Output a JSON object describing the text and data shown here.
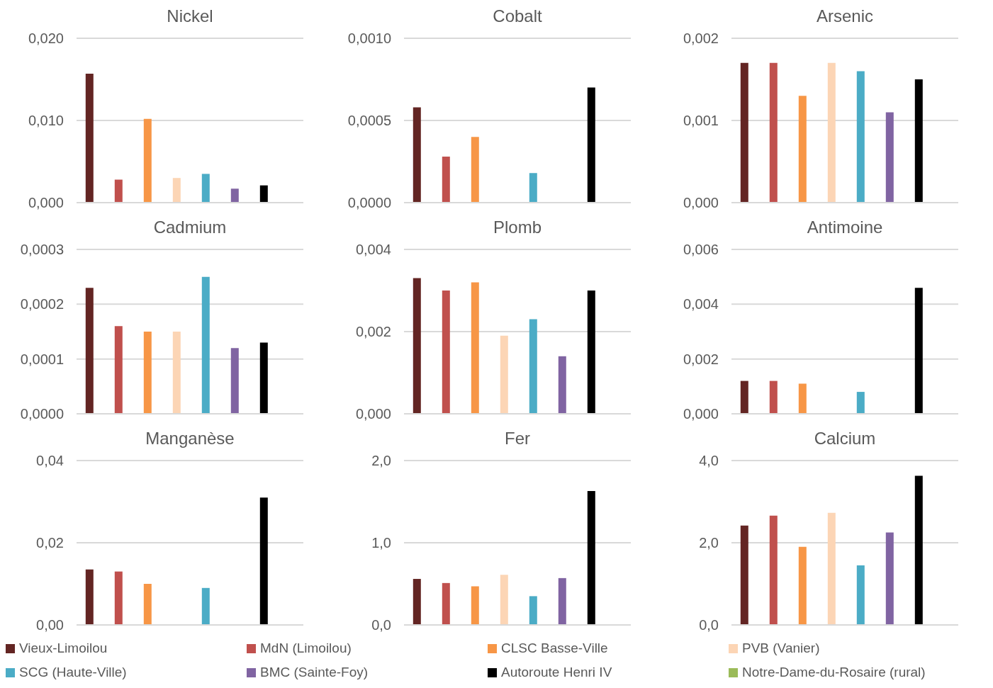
{
  "chart_data": [
    {
      "type": "bar",
      "title": "Nickel",
      "categories": [
        null
      ],
      "grid": "y",
      "legend": "bottom",
      "ylim": [
        0,
        0.02
      ],
      "yticks": [
        {
          "value": 0,
          "label": "0,000"
        },
        {
          "value": 0.01,
          "label": "0,010"
        },
        {
          "value": 0.02,
          "label": "0,020"
        }
      ],
      "series": [
        {
          "name": "Vieux-Limoilou",
          "color": "#632523",
          "values": [
            0.0157
          ]
        },
        {
          "name": "MdN (Limoilou)",
          "color": "#c0504d",
          "values": [
            0.0028
          ]
        },
        {
          "name": "CLSC Basse-Ville",
          "color": "#f79646",
          "values": [
            0.0102
          ]
        },
        {
          "name": "PVB (Vanier)",
          "color": "#fcd5b5",
          "values": [
            0.003
          ]
        },
        {
          "name": "SCG (Haute-Ville)",
          "color": "#4bacc6",
          "values": [
            0.0035
          ]
        },
        {
          "name": "BMC (Sainte-Foy)",
          "color": "#8064a2",
          "values": [
            0.0017
          ]
        },
        {
          "name": "Autoroute Henri IV",
          "color": "#000000",
          "values": [
            0.0021
          ]
        },
        {
          "name": "Notre-Dame-du-Rosaire (rural)",
          "color": "#9bbb59",
          "values": [
            null
          ]
        }
      ]
    },
    {
      "type": "bar",
      "title": "Cobalt",
      "categories": [
        null
      ],
      "grid": "y",
      "ylim": [
        0,
        0.001
      ],
      "yticks": [
        {
          "value": 0,
          "label": "0,0000"
        },
        {
          "value": 0.0005,
          "label": "0,0005"
        },
        {
          "value": 0.001,
          "label": "0,0010"
        }
      ],
      "series": [
        {
          "color": "#632523",
          "values": [
            0.00058
          ]
        },
        {
          "color": "#c0504d",
          "values": [
            0.00028
          ]
        },
        {
          "color": "#f79646",
          "values": [
            0.0004
          ]
        },
        {
          "color": "#fcd5b5",
          "values": [
            null
          ]
        },
        {
          "color": "#4bacc6",
          "values": [
            0.00018
          ]
        },
        {
          "color": "#8064a2",
          "values": [
            null
          ]
        },
        {
          "color": "#000000",
          "values": [
            0.0007
          ]
        },
        {
          "color": "#9bbb59",
          "values": [
            null
          ]
        }
      ]
    },
    {
      "type": "bar",
      "title": "Arsenic",
      "categories": [
        null
      ],
      "grid": "y",
      "ylim": [
        0,
        0.002
      ],
      "yticks": [
        {
          "value": 0,
          "label": "0,000"
        },
        {
          "value": 0.001,
          "label": "0,001"
        },
        {
          "value": 0.002,
          "label": "0,002"
        }
      ],
      "series": [
        {
          "color": "#632523",
          "values": [
            0.0017
          ]
        },
        {
          "color": "#c0504d",
          "values": [
            0.0017
          ]
        },
        {
          "color": "#f79646",
          "values": [
            0.0013
          ]
        },
        {
          "color": "#fcd5b5",
          "values": [
            0.0017
          ]
        },
        {
          "color": "#4bacc6",
          "values": [
            0.0016
          ]
        },
        {
          "color": "#8064a2",
          "values": [
            0.0011
          ]
        },
        {
          "color": "#000000",
          "values": [
            0.0015
          ]
        },
        {
          "color": "#9bbb59",
          "values": [
            null
          ]
        }
      ]
    },
    {
      "type": "bar",
      "title": "Cadmium",
      "categories": [
        null
      ],
      "grid": "y",
      "ylim": [
        0,
        0.0003
      ],
      "yticks": [
        {
          "value": 0,
          "label": "0,0000"
        },
        {
          "value": 0.0001,
          "label": "0,0001"
        },
        {
          "value": 0.0002,
          "label": "0,0002"
        },
        {
          "value": 0.0003,
          "label": "0,0003"
        }
      ],
      "series": [
        {
          "color": "#632523",
          "values": [
            0.00023
          ]
        },
        {
          "color": "#c0504d",
          "values": [
            0.00016
          ]
        },
        {
          "color": "#f79646",
          "values": [
            0.00015
          ]
        },
        {
          "color": "#fcd5b5",
          "values": [
            0.00015
          ]
        },
        {
          "color": "#4bacc6",
          "values": [
            0.00025
          ]
        },
        {
          "color": "#8064a2",
          "values": [
            0.00012
          ]
        },
        {
          "color": "#000000",
          "values": [
            0.00013
          ]
        },
        {
          "color": "#9bbb59",
          "values": [
            null
          ]
        }
      ]
    },
    {
      "type": "bar",
      "title": "Plomb",
      "categories": [
        null
      ],
      "grid": "y",
      "ylim": [
        0,
        0.004
      ],
      "yticks": [
        {
          "value": 0,
          "label": "0,000"
        },
        {
          "value": 0.002,
          "label": "0,002"
        },
        {
          "value": 0.004,
          "label": "0,004"
        }
      ],
      "series": [
        {
          "color": "#632523",
          "values": [
            0.0033
          ]
        },
        {
          "color": "#c0504d",
          "values": [
            0.003
          ]
        },
        {
          "color": "#f79646",
          "values": [
            0.0032
          ]
        },
        {
          "color": "#fcd5b5",
          "values": [
            0.0019
          ]
        },
        {
          "color": "#4bacc6",
          "values": [
            0.0023
          ]
        },
        {
          "color": "#8064a2",
          "values": [
            0.0014
          ]
        },
        {
          "color": "#000000",
          "values": [
            0.003
          ]
        },
        {
          "color": "#9bbb59",
          "values": [
            null
          ]
        }
      ]
    },
    {
      "type": "bar",
      "title": "Antimoine",
      "categories": [
        null
      ],
      "grid": "y",
      "ylim": [
        0,
        0.006
      ],
      "yticks": [
        {
          "value": 0,
          "label": "0,000"
        },
        {
          "value": 0.002,
          "label": "0,002"
        },
        {
          "value": 0.004,
          "label": "0,004"
        },
        {
          "value": 0.006,
          "label": "0,006"
        }
      ],
      "series": [
        {
          "color": "#632523",
          "values": [
            0.0012
          ]
        },
        {
          "color": "#c0504d",
          "values": [
            0.0012
          ]
        },
        {
          "color": "#f79646",
          "values": [
            0.0011
          ]
        },
        {
          "color": "#fcd5b5",
          "values": [
            null
          ]
        },
        {
          "color": "#4bacc6",
          "values": [
            0.0008
          ]
        },
        {
          "color": "#8064a2",
          "values": [
            null
          ]
        },
        {
          "color": "#000000",
          "values": [
            0.0046
          ]
        },
        {
          "color": "#9bbb59",
          "values": [
            null
          ]
        }
      ]
    },
    {
      "type": "bar",
      "title": "Manganèse",
      "categories": [
        null
      ],
      "grid": "y",
      "ylim": [
        0,
        0.04
      ],
      "yticks": [
        {
          "value": 0,
          "label": "0,00"
        },
        {
          "value": 0.02,
          "label": "0,02"
        },
        {
          "value": 0.04,
          "label": "0,04"
        }
      ],
      "series": [
        {
          "color": "#632523",
          "values": [
            0.0135
          ]
        },
        {
          "color": "#c0504d",
          "values": [
            0.013
          ]
        },
        {
          "color": "#f79646",
          "values": [
            0.01
          ]
        },
        {
          "color": "#fcd5b5",
          "values": [
            null
          ]
        },
        {
          "color": "#4bacc6",
          "values": [
            0.009
          ]
        },
        {
          "color": "#8064a2",
          "values": [
            null
          ]
        },
        {
          "color": "#000000",
          "values": [
            0.031
          ]
        },
        {
          "color": "#9bbb59",
          "values": [
            null
          ]
        }
      ]
    },
    {
      "type": "bar",
      "title": "Fer",
      "categories": [
        null
      ],
      "grid": "y",
      "ylim": [
        0,
        2
      ],
      "yticks": [
        {
          "value": 0,
          "label": "0,0"
        },
        {
          "value": 1,
          "label": "1,0"
        },
        {
          "value": 2,
          "label": "2,0"
        }
      ],
      "series": [
        {
          "color": "#632523",
          "values": [
            0.56
          ]
        },
        {
          "color": "#c0504d",
          "values": [
            0.51
          ]
        },
        {
          "color": "#f79646",
          "values": [
            0.47
          ]
        },
        {
          "color": "#fcd5b5",
          "values": [
            0.61
          ]
        },
        {
          "color": "#4bacc6",
          "values": [
            0.35
          ]
        },
        {
          "color": "#8064a2",
          "values": [
            0.57
          ]
        },
        {
          "color": "#000000",
          "values": [
            1.63
          ]
        },
        {
          "color": "#9bbb59",
          "values": [
            null
          ]
        }
      ]
    },
    {
      "type": "bar",
      "title": "Calcium",
      "categories": [
        null
      ],
      "grid": "y",
      "ylim": [
        0,
        4
      ],
      "yticks": [
        {
          "value": 0,
          "label": "0,0"
        },
        {
          "value": 2,
          "label": "2,0"
        },
        {
          "value": 4,
          "label": "4,0"
        }
      ],
      "series": [
        {
          "color": "#632523",
          "values": [
            2.42
          ]
        },
        {
          "color": "#c0504d",
          "values": [
            2.66
          ]
        },
        {
          "color": "#f79646",
          "values": [
            1.9
          ]
        },
        {
          "color": "#fcd5b5",
          "values": [
            2.73
          ]
        },
        {
          "color": "#4bacc6",
          "values": [
            1.45
          ]
        },
        {
          "color": "#8064a2",
          "values": [
            2.25
          ]
        },
        {
          "color": "#000000",
          "values": [
            3.63
          ]
        },
        {
          "color": "#9bbb59",
          "values": [
            null
          ]
        }
      ]
    }
  ]
}
